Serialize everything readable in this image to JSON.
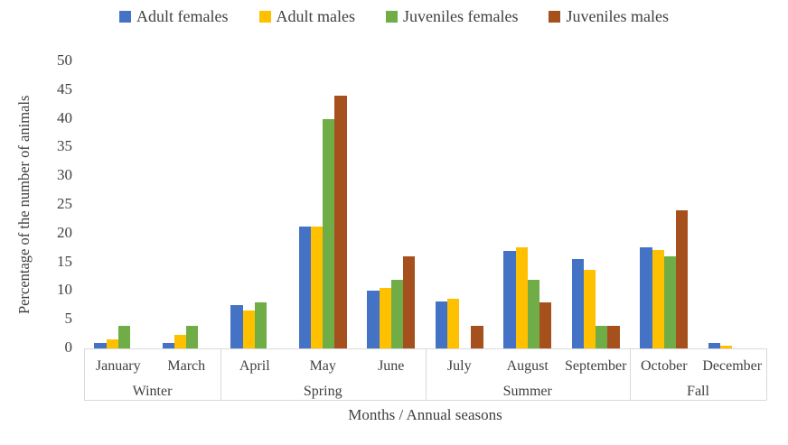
{
  "colors": {
    "axis": "#d9d9d9",
    "text": "#404040",
    "background": "#ffffff"
  },
  "chart_data": {
    "type": "bar",
    "title": "",
    "xlabel": "Months / Annual seasons",
    "ylabel": "Percentage of the number of animals",
    "ylim": [
      0,
      50
    ],
    "yticks": [
      0,
      5,
      10,
      15,
      20,
      25,
      30,
      35,
      40,
      45,
      50
    ],
    "grid": false,
    "legend_position": "top",
    "categories": [
      "January",
      "March",
      "April",
      "May",
      "June",
      "July",
      "August",
      "September",
      "October",
      "December"
    ],
    "season_groups": [
      {
        "label": "Winter",
        "months": [
          "January",
          "March"
        ]
      },
      {
        "label": "Spring",
        "months": [
          "April",
          "May",
          "June"
        ]
      },
      {
        "label": "Summer",
        "months": [
          "July",
          "August",
          "September"
        ]
      },
      {
        "label": "Fall",
        "months": [
          "October",
          "December"
        ]
      }
    ],
    "series": [
      {
        "name": "Adult females",
        "color": "#4472C4",
        "values": [
          1,
          1,
          7.5,
          21.3,
          10,
          8.1,
          17,
          15.6,
          17.6,
          1
        ]
      },
      {
        "name": "Adult males",
        "color": "#FFC000",
        "values": [
          1.5,
          2.4,
          6.6,
          21.2,
          10.5,
          8.6,
          17.6,
          13.7,
          17.1,
          0.4
        ]
      },
      {
        "name": "Juveniles females",
        "color": "#70AD47",
        "values": [
          4,
          4,
          8,
          40,
          12,
          0,
          12,
          4,
          16,
          0
        ]
      },
      {
        "name": "Juveniles males",
        "color": "#A6511D",
        "values": [
          0,
          0,
          0,
          44,
          16,
          4,
          8,
          4,
          24,
          0
        ]
      }
    ]
  }
}
